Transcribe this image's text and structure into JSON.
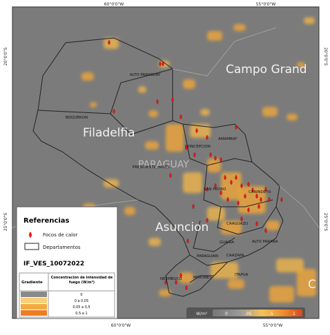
{
  "coordinates": {
    "top": [
      "60°0'0\"W",
      "55°0'0\"W"
    ],
    "bottom": [
      "60°0'0\"W",
      "55°0'0\"W"
    ],
    "left": [
      "20°0'0\"S",
      "25°0'0\"S"
    ],
    "right": [
      "20°0'0\"S",
      "25°0'0\"S"
    ]
  },
  "places": [
    "Campo Grand",
    "Filadelfia",
    "PARAGUAY",
    "Asuncion",
    "C"
  ],
  "departments": [
    "ALTO PARAGUAY",
    "BOQUERON",
    "CONCEPCION",
    "AMAMBAY",
    "PRESIDENTE HAYES",
    "SAN PEDRO",
    "CANINDEYU",
    "CAAGUAZU",
    "GUAIRA",
    "ALTO PARANA",
    "CAAZAPA",
    "PARAGUARI",
    "MISIONES",
    "ITAPUA",
    "NEEMBUCU"
  ],
  "legend": {
    "title": "Referencias",
    "items": [
      "Focos de calor",
      "Departamentos"
    ],
    "layer": "IF_VES_10072022",
    "table": {
      "header": [
        "Gradiente",
        "Concentración de intensidad de fuego (W/m²)"
      ],
      "rows": [
        "0",
        "0 a 0,05",
        "0,05 a 0,5",
        "0,5 a 1"
      ]
    }
  },
  "colorbar": {
    "unit": "W/m²",
    "labels": [
      "0",
      ".05",
      ".5",
      "1"
    ]
  }
}
